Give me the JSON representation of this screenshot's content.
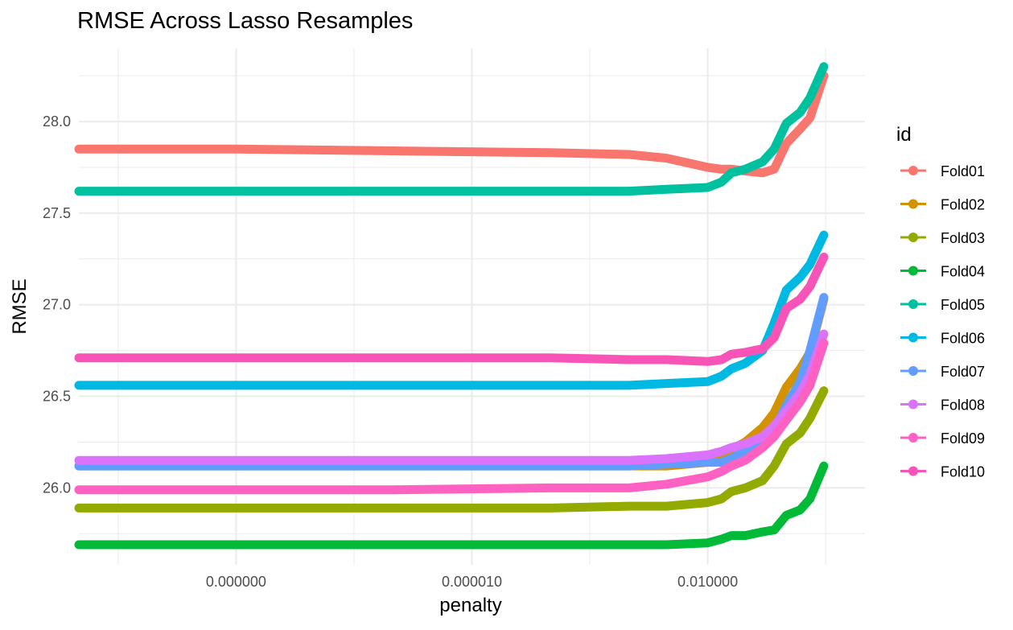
{
  "chart_data": {
    "type": "line",
    "title": "RMSE Across Lasso Resamples",
    "xlabel": "penalty",
    "ylabel": "RMSE",
    "x_scale": "log10",
    "xlim": [
      1e-10,
      1
    ],
    "ylim": [
      25.58,
      28.4
    ],
    "x_ticks": [
      {
        "value": 1e-08,
        "label": "0.000000"
      },
      {
        "value": 1e-05,
        "label": "0.000010"
      },
      {
        "value": 0.01,
        "label": "0.010000"
      }
    ],
    "y_ticks": [
      {
        "value": 26.0,
        "label": "26.0"
      },
      {
        "value": 26.5,
        "label": "26.5"
      },
      {
        "value": 27.0,
        "label": "27.0"
      },
      {
        "value": 27.5,
        "label": "27.5"
      },
      {
        "value": 28.0,
        "label": "28.0"
      }
    ],
    "grid": true,
    "legend": {
      "title": "id",
      "position": "right"
    },
    "x": [
      1e-10,
      1e-08,
      1e-06,
      0.0001,
      0.001,
      0.003,
      0.01,
      0.015,
      0.02,
      0.03,
      0.05,
      0.07,
      0.1,
      0.15,
      0.2,
      0.3
    ],
    "series": [
      {
        "name": "Fold01",
        "color": "#F8766D",
        "values": [
          27.85,
          27.85,
          27.84,
          27.83,
          27.82,
          27.8,
          27.75,
          27.74,
          27.74,
          27.73,
          27.72,
          27.74,
          27.88,
          27.96,
          28.02,
          28.25
        ]
      },
      {
        "name": "Fold02",
        "color": "#D39200",
        "values": [
          26.12,
          26.12,
          26.12,
          26.12,
          26.12,
          26.12,
          26.14,
          26.17,
          26.21,
          26.25,
          26.33,
          26.41,
          26.55,
          26.65,
          26.74,
          27.03
        ]
      },
      {
        "name": "Fold03",
        "color": "#93AA00",
        "values": [
          25.89,
          25.89,
          25.89,
          25.89,
          25.9,
          25.9,
          25.92,
          25.94,
          25.98,
          26.0,
          26.04,
          26.12,
          26.24,
          26.3,
          26.38,
          26.53
        ]
      },
      {
        "name": "Fold04",
        "color": "#00BA38",
        "values": [
          25.69,
          25.69,
          25.69,
          25.69,
          25.69,
          25.69,
          25.7,
          25.72,
          25.74,
          25.74,
          25.76,
          25.77,
          25.85,
          25.88,
          25.94,
          26.12
        ]
      },
      {
        "name": "Fold05",
        "color": "#00C19F",
        "values": [
          27.62,
          27.62,
          27.62,
          27.62,
          27.62,
          27.63,
          27.64,
          27.67,
          27.72,
          27.74,
          27.78,
          27.85,
          27.99,
          28.05,
          28.13,
          28.3
        ]
      },
      {
        "name": "Fold06",
        "color": "#00B9E3",
        "values": [
          26.56,
          26.56,
          26.56,
          26.56,
          26.56,
          26.57,
          26.58,
          26.61,
          26.65,
          26.68,
          26.75,
          26.9,
          27.08,
          27.15,
          27.22,
          27.38
        ]
      },
      {
        "name": "Fold07",
        "color": "#619CFF",
        "values": [
          26.12,
          26.12,
          26.12,
          26.12,
          26.12,
          26.13,
          26.14,
          26.14,
          26.16,
          26.2,
          26.25,
          26.32,
          26.45,
          26.58,
          26.75,
          27.04
        ]
      },
      {
        "name": "Fold08",
        "color": "#DB72FB",
        "values": [
          26.15,
          26.15,
          26.15,
          26.15,
          26.15,
          26.16,
          26.18,
          26.2,
          26.22,
          26.24,
          26.28,
          26.34,
          26.42,
          26.52,
          26.62,
          26.84
        ]
      },
      {
        "name": "Fold09",
        "color": "#FF61C3",
        "values": [
          25.99,
          25.99,
          25.99,
          26.0,
          26.0,
          26.02,
          26.06,
          26.09,
          26.12,
          26.15,
          26.22,
          26.28,
          26.37,
          26.47,
          26.56,
          26.79
        ]
      },
      {
        "name": "Fold10",
        "color": "#F854B8",
        "values": [
          26.71,
          26.71,
          26.71,
          26.71,
          26.7,
          26.7,
          26.69,
          26.7,
          26.73,
          26.74,
          26.76,
          26.82,
          26.98,
          27.03,
          27.1,
          27.26
        ]
      }
    ]
  }
}
